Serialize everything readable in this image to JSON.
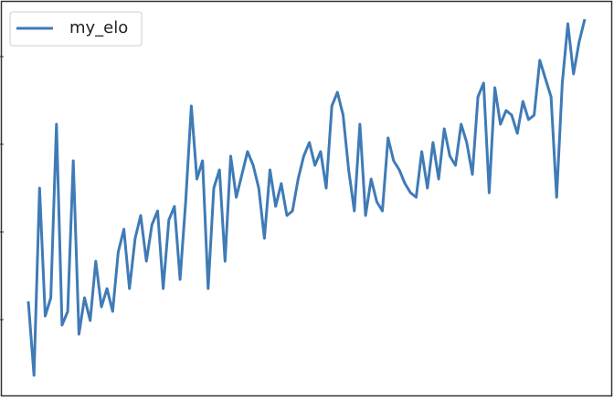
{
  "chart_data": {
    "type": "line",
    "series": [
      {
        "name": "my_elo",
        "color": "#3f7bb6",
        "values": [
          106,
          25,
          230,
          90,
          110,
          300,
          80,
          95,
          260,
          70,
          110,
          85,
          150,
          100,
          120,
          95,
          160,
          185,
          120,
          175,
          200,
          150,
          190,
          205,
          120,
          195,
          210,
          130,
          215,
          320,
          240,
          260,
          120,
          230,
          250,
          150,
          265,
          220,
          245,
          270,
          255,
          230,
          175,
          250,
          210,
          235,
          200,
          205,
          240,
          265,
          280,
          255,
          270,
          230,
          320,
          335,
          310,
          250,
          205,
          300,
          200,
          240,
          215,
          205,
          285,
          260,
          250,
          235,
          225,
          220,
          270,
          230,
          280,
          240,
          295,
          265,
          255,
          300,
          280,
          245,
          330,
          345,
          225,
          340,
          300,
          315,
          310,
          290,
          325,
          305,
          310,
          370,
          350,
          330,
          220,
          345,
          410,
          355,
          390,
          415
        ]
      }
    ],
    "ylim": [
      0,
      434
    ],
    "yticks": [
      86,
      182,
      278,
      374
    ],
    "legend": "upper left"
  }
}
